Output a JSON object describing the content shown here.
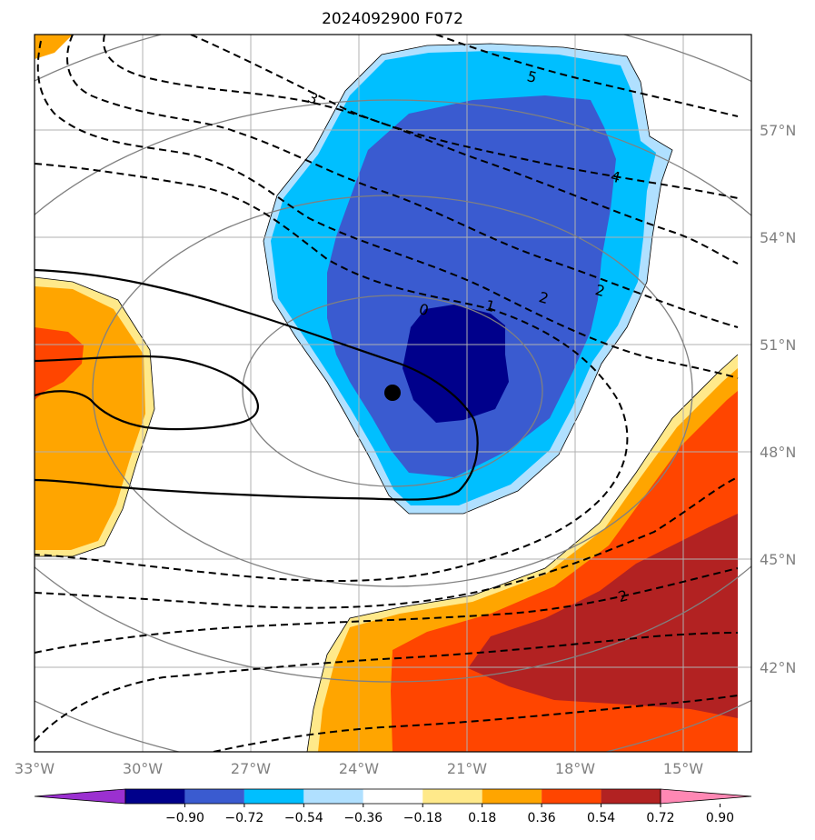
{
  "title": "2024092900 F072",
  "chart_data": {
    "type": "heatmap",
    "title": "2024092900 F072",
    "lon_ticks": [
      "33°W",
      "30°W",
      "27°W",
      "24°W",
      "21°W",
      "18°W",
      "15°W"
    ],
    "lat_ticks": [
      "57°N",
      "54°N",
      "51°N",
      "48°N",
      "45°N",
      "42°N"
    ],
    "lon_range": [
      -33,
      -13.5
    ],
    "lat_range": [
      40,
      58.6
    ],
    "grid": true,
    "colorbar": {
      "placement": "bottom",
      "levels": [
        "−0.90",
        "−0.72",
        "−0.54",
        "−0.36",
        "−0.18",
        "0.18",
        "0.36",
        "0.54",
        "0.72",
        "0.90"
      ],
      "colors": [
        "#9b30d0",
        "#00008b",
        "#3a5bd0",
        "#00bfff",
        "#b0e0ff",
        "#ffffff",
        "#ffe98a",
        "#ffa500",
        "#ff4500",
        "#b22222",
        "#ff88b4"
      ],
      "extend": "both"
    },
    "contour_labels": [
      "5",
      "4",
      "3",
      "2",
      "2",
      "1",
      "0",
      "2"
    ],
    "marker": {
      "lon": -23,
      "lat": 49.6
    }
  }
}
